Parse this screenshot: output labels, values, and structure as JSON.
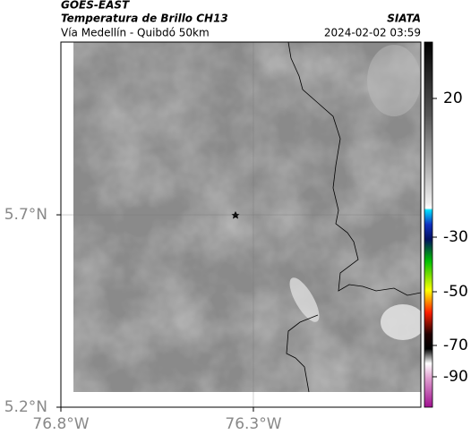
{
  "header": {
    "satellite": "GOES-EAST",
    "product": "Temperatura de Brillo CH13",
    "source": "SIATA",
    "region": "Vía Medellín - Quibdó 50km",
    "timestamp": "2024-02-02 03:59"
  },
  "map": {
    "xlim": [
      -76.8,
      -75.865
    ],
    "ylim": [
      5.2,
      6.149
    ],
    "xticks": [
      {
        "value": -76.8,
        "label": "76.8°W"
      },
      {
        "value": -76.3,
        "label": "76.3°W"
      }
    ],
    "yticks": [
      {
        "value": 5.7,
        "label": "5.7°N"
      },
      {
        "value": 5.2,
        "label": "5.2°N"
      }
    ],
    "grid": true
  },
  "colorbar": {
    "ticks": [
      20,
      -30,
      -50,
      -70,
      -90
    ]
  }
}
